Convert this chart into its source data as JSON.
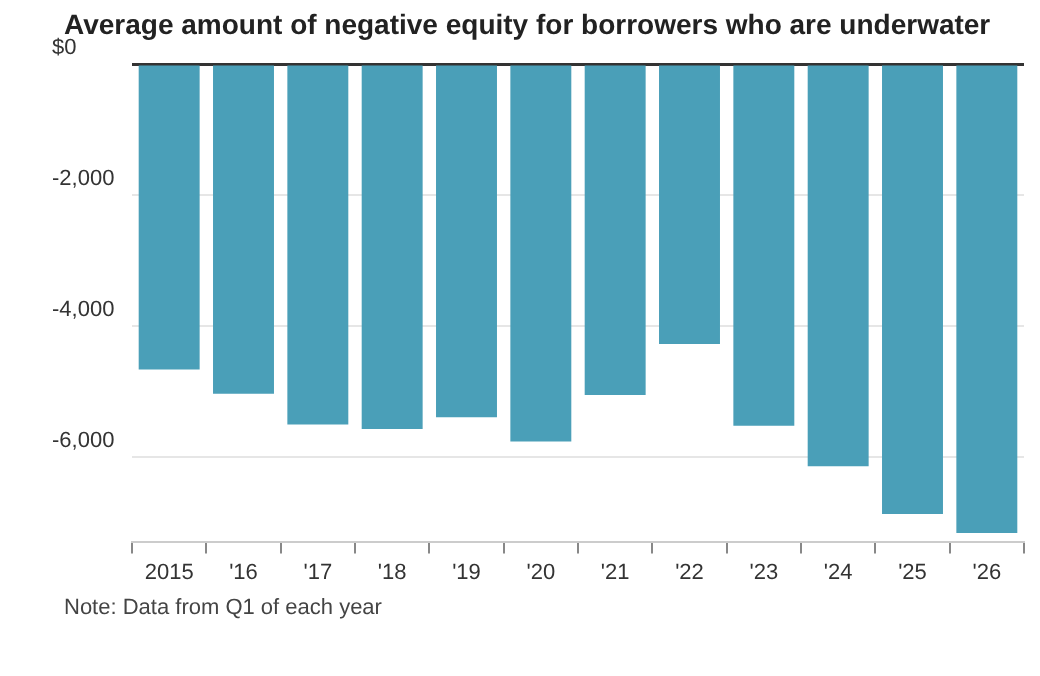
{
  "chart_data": {
    "type": "bar",
    "title": "Average amount of negative equity for borrowers who are underwater",
    "categories": [
      "2015",
      "'16",
      "'17",
      "'18",
      "'19",
      "'20",
      "'21",
      "'22",
      "'23",
      "'24",
      "'25",
      "'26"
    ],
    "values": [
      -4670,
      -5040,
      -5510,
      -5580,
      -5400,
      -5770,
      -5060,
      -4280,
      -5530,
      -6150,
      -6880,
      -7170
    ],
    "color": "#4a9fb8",
    "ylim": [
      -7300,
      0
    ],
    "yticks": [
      {
        "value": -6000,
        "label": "-6,000"
      },
      {
        "value": -4000,
        "label": "-4,000"
      },
      {
        "value": -2000,
        "label": "-2,000"
      },
      {
        "value": 0,
        "label": "$0"
      }
    ],
    "grid": "y",
    "annotations": [
      "Note: Data from Q1 of each year"
    ]
  }
}
